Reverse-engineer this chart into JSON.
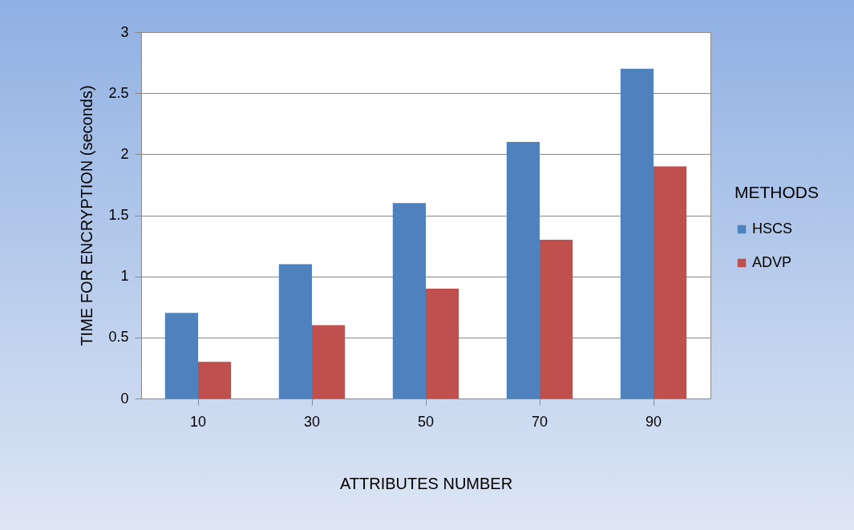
{
  "chart_data": {
    "type": "bar",
    "xlabel": "ATTRIBUTES NUMBER",
    "ylabel": "TIME FOR ENCRYPTION (seconds)",
    "legend_title": "METHODS",
    "categories": [
      "10",
      "30",
      "50",
      "70",
      "90"
    ],
    "series": [
      {
        "name": "HSCS",
        "color": "#4f81bd",
        "values": [
          0.7,
          1.1,
          1.6,
          2.1,
          2.7
        ]
      },
      {
        "name": "ADVP",
        "color": "#c0504d",
        "values": [
          0.3,
          0.6,
          0.9,
          1.3,
          1.9
        ]
      }
    ],
    "ylim": [
      0,
      3
    ],
    "yticks": [
      0,
      0.5,
      1,
      1.5,
      2,
      2.5,
      3
    ],
    "grid": "y",
    "legend": "right"
  }
}
